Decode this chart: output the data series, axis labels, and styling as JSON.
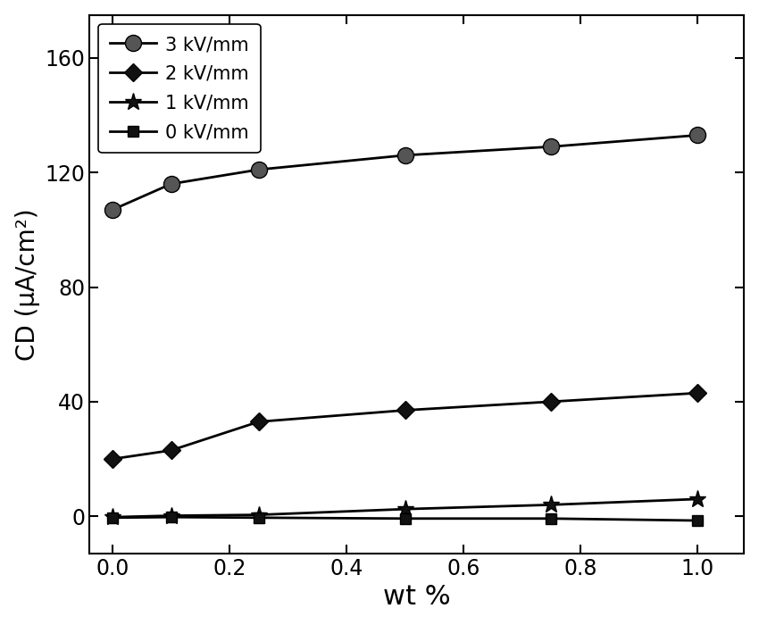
{
  "x": [
    0.0,
    0.1,
    0.25,
    0.5,
    0.75,
    1.0
  ],
  "series": [
    {
      "label": "3 kV/mm",
      "y": [
        107,
        116,
        121,
        126,
        129,
        133
      ],
      "marker": "o",
      "markersize": 13,
      "markerfacecolor": "#555555"
    },
    {
      "label": "2 kV/mm",
      "y": [
        20,
        23,
        33,
        37,
        40,
        43
      ],
      "marker": "D",
      "markersize": 10,
      "markerfacecolor": "#111111"
    },
    {
      "label": "1 kV/mm",
      "y": [
        -0.3,
        0.2,
        0.5,
        2.5,
        4.0,
        6.0
      ],
      "marker": "*",
      "markersize": 14,
      "markerfacecolor": "#111111"
    },
    {
      "label": "0 kV/mm",
      "y": [
        -0.5,
        -0.3,
        -0.5,
        -0.8,
        -0.8,
        -1.5
      ],
      "marker": "s",
      "markersize": 9,
      "markerfacecolor": "#111111"
    }
  ],
  "xlabel": "wt %",
  "ylabel": "CD (μA/cm²)",
  "ylim": [
    -13,
    175
  ],
  "xlim": [
    -0.04,
    1.08
  ],
  "yticks": [
    0,
    40,
    80,
    120,
    160
  ],
  "xticks": [
    0.0,
    0.2,
    0.4,
    0.6,
    0.8,
    1.0
  ],
  "line_color": "#000000",
  "linewidth": 2.0,
  "legend_fontsize": 15,
  "tick_fontsize": 17,
  "xlabel_fontsize": 22,
  "ylabel_fontsize": 20
}
